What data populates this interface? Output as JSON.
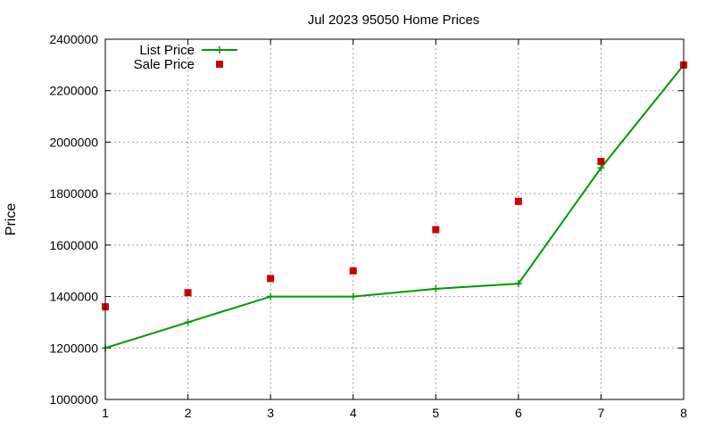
{
  "chart_data": {
    "type": "line",
    "title": "Jul 2023 95050 Home Prices",
    "xlabel": "",
    "ylabel": "Price",
    "x": [
      1,
      2,
      3,
      4,
      5,
      6,
      7,
      8
    ],
    "xlim": [
      1,
      8
    ],
    "ylim": [
      1000000,
      2400000
    ],
    "x_ticks": [
      "1",
      "2",
      "3",
      "4",
      "5",
      "6",
      "7",
      "8"
    ],
    "y_ticks": [
      "1000000",
      "1200000",
      "1400000",
      "1600000",
      "1800000",
      "2000000",
      "2200000",
      "2400000"
    ],
    "grid": true,
    "legend_position": "top-left",
    "series": [
      {
        "name": "List Price",
        "style": "line-with-plus-markers",
        "color": "#009900",
        "values": [
          1200000,
          1300000,
          1400000,
          1400000,
          1430000,
          1450000,
          1900000,
          2300000
        ]
      },
      {
        "name": "Sale Price",
        "style": "square-markers",
        "color": "#cc0000",
        "values": [
          1360000,
          1415000,
          1470000,
          1500000,
          1660000,
          1770000,
          1925000,
          2300000
        ]
      }
    ]
  }
}
